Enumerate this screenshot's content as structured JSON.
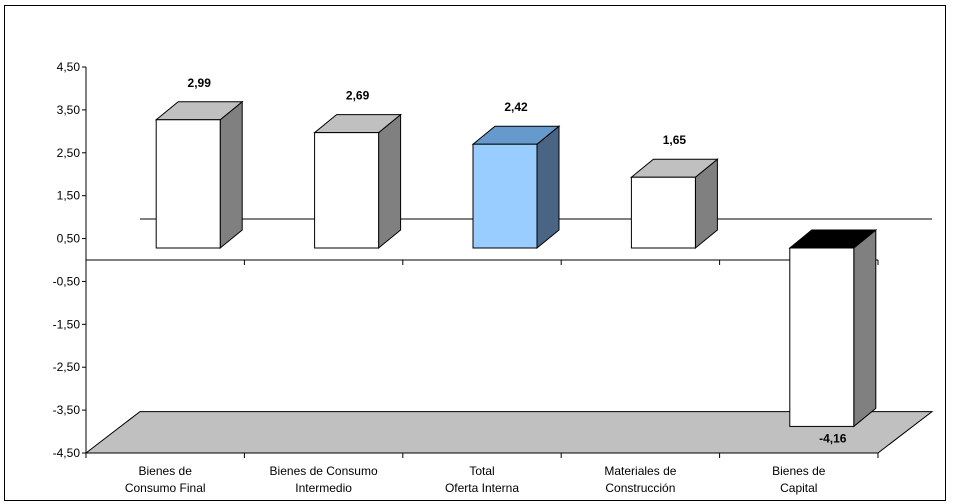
{
  "chart_data": {
    "type": "bar",
    "style": "3d-column",
    "categories": [
      [
        "Bienes de",
        "Consumo Final"
      ],
      [
        "Bienes de Consumo",
        "Intermedio"
      ],
      [
        "Total",
        "Oferta Interna"
      ],
      [
        "Materiales de",
        "Construcción"
      ],
      [
        "Bienes de",
        "Capital"
      ]
    ],
    "values": [
      2.99,
      2.69,
      2.42,
      1.65,
      -4.16
    ],
    "value_labels": [
      "2,99",
      "2,69",
      "2,42",
      "1,65",
      "-4,16"
    ],
    "y_ticks": [
      "4,50",
      "3,50",
      "2,50",
      "1,50",
      "0,50",
      "-0,50",
      "-1,50",
      "-2,50",
      "-3,50",
      "-4,50"
    ],
    "ylim": [
      -4.5,
      4.5
    ],
    "highlight_index": 2,
    "colors": {
      "bar_front": "#ffffff",
      "bar_top": "#c0c0c0",
      "bar_side": "#808080",
      "highlight_front": "#99ccff",
      "highlight_top": "#6699cc",
      "highlight_side": "#4a6584",
      "negative_top": "#000000",
      "floor": "#c0c0c0",
      "frame": "#000000"
    },
    "grid": false,
    "legend": "none",
    "title": "",
    "xlabel": "",
    "ylabel": ""
  }
}
